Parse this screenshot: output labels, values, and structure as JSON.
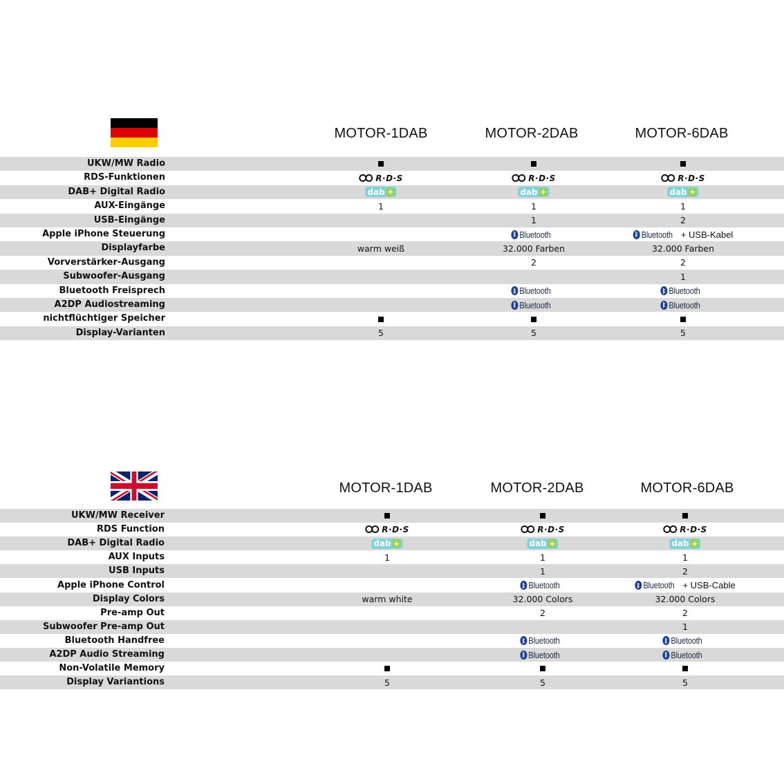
{
  "de": {
    "flag": "germany-flag",
    "models": [
      "MOTOR-1DAB",
      "MOTOR-2DAB",
      "MOTOR-6DAB"
    ],
    "rows": [
      {
        "label": "UKW/MW Radio",
        "cells": [
          {
            "t": "square"
          },
          {
            "t": "square"
          },
          {
            "t": "square"
          }
        ]
      },
      {
        "label": "RDS-Funktionen",
        "cells": [
          {
            "t": "rds",
            "text": "R·D·S"
          },
          {
            "t": "rds",
            "text": "R·D·S"
          },
          {
            "t": "rds",
            "text": "R·D·S"
          }
        ]
      },
      {
        "label": "DAB+ Digital Radio",
        "cells": [
          {
            "t": "dab",
            "text": "dab"
          },
          {
            "t": "dab",
            "text": "dab"
          },
          {
            "t": "dab",
            "text": "dab"
          }
        ]
      },
      {
        "label": "AUX-Eingänge",
        "cells": [
          {
            "t": "text",
            "text": "1"
          },
          {
            "t": "text",
            "text": "1"
          },
          {
            "t": "text",
            "text": "1"
          }
        ]
      },
      {
        "label": "USB-Eingänge",
        "cells": [
          {
            "t": "empty"
          },
          {
            "t": "text",
            "text": "1"
          },
          {
            "t": "text",
            "text": "2"
          }
        ]
      },
      {
        "label": "Apple iPhone Steuerung",
        "cells": [
          {
            "t": "empty"
          },
          {
            "t": "bt",
            "text": "Bluetooth"
          },
          {
            "t": "bt",
            "text": "Bluetooth",
            "extra": "+ USB-Kabel"
          }
        ]
      },
      {
        "label": "Displayfarbe",
        "cells": [
          {
            "t": "text",
            "text": "warm weiß"
          },
          {
            "t": "text",
            "text": "32.000 Farben"
          },
          {
            "t": "text",
            "text": "32.000 Farben"
          }
        ]
      },
      {
        "label": "Vorverstärker-Ausgang",
        "cells": [
          {
            "t": "empty"
          },
          {
            "t": "text",
            "text": "2"
          },
          {
            "t": "text",
            "text": "2"
          }
        ]
      },
      {
        "label": "Subwoofer-Ausgang",
        "cells": [
          {
            "t": "empty"
          },
          {
            "t": "empty"
          },
          {
            "t": "text",
            "text": "1"
          }
        ]
      },
      {
        "label": "Bluetooth Freisprech",
        "cells": [
          {
            "t": "empty"
          },
          {
            "t": "bt",
            "text": "Bluetooth"
          },
          {
            "t": "bt",
            "text": "Bluetooth"
          }
        ]
      },
      {
        "label": "A2DP Audiostreaming",
        "cells": [
          {
            "t": "empty"
          },
          {
            "t": "bt",
            "text": "Bluetooth"
          },
          {
            "t": "bt",
            "text": "Bluetooth"
          }
        ]
      },
      {
        "label": "nichtflüchtiger Speicher",
        "cells": [
          {
            "t": "square"
          },
          {
            "t": "square"
          },
          {
            "t": "square"
          }
        ]
      },
      {
        "label": "Display-Varianten",
        "cells": [
          {
            "t": "text",
            "text": "5"
          },
          {
            "t": "text",
            "text": "5"
          },
          {
            "t": "text",
            "text": "5"
          }
        ]
      }
    ]
  },
  "en": {
    "flag": "uk-flag",
    "models": [
      "MOTOR-1DAB",
      "MOTOR-2DAB",
      "MOTOR-6DAB"
    ],
    "rows": [
      {
        "label": "UKW/MW Receiver",
        "cells": [
          {
            "t": "square"
          },
          {
            "t": "square"
          },
          {
            "t": "square"
          }
        ]
      },
      {
        "label": "RDS Function",
        "cells": [
          {
            "t": "rds",
            "text": "R·D·S"
          },
          {
            "t": "rds",
            "text": "R·D·S"
          },
          {
            "t": "rds",
            "text": "R·D·S"
          }
        ]
      },
      {
        "label": "DAB+ Digital Radio",
        "cells": [
          {
            "t": "dab",
            "text": "dab"
          },
          {
            "t": "dab",
            "text": "dab"
          },
          {
            "t": "dab",
            "text": "dab"
          }
        ]
      },
      {
        "label": "AUX Inputs",
        "cells": [
          {
            "t": "text",
            "text": "1"
          },
          {
            "t": "text",
            "text": "1"
          },
          {
            "t": "text",
            "text": "1"
          }
        ]
      },
      {
        "label": "USB Inputs",
        "cells": [
          {
            "t": "empty"
          },
          {
            "t": "text",
            "text": "1"
          },
          {
            "t": "text",
            "text": "2"
          }
        ]
      },
      {
        "label": "Apple iPhone Control",
        "cells": [
          {
            "t": "empty"
          },
          {
            "t": "bt",
            "text": "Bluetooth"
          },
          {
            "t": "bt",
            "text": "Bluetooth",
            "extra": "+ USB-Cable"
          }
        ]
      },
      {
        "label": "Display Colors",
        "cells": [
          {
            "t": "text",
            "text": "warm white"
          },
          {
            "t": "text",
            "text": "32.000 Colors"
          },
          {
            "t": "text",
            "text": "32.000 Colors"
          }
        ]
      },
      {
        "label": "Pre-amp Out",
        "cells": [
          {
            "t": "empty"
          },
          {
            "t": "text",
            "text": "2"
          },
          {
            "t": "text",
            "text": "2"
          }
        ]
      },
      {
        "label": "Subwoofer Pre-amp Out",
        "cells": [
          {
            "t": "empty"
          },
          {
            "t": "empty"
          },
          {
            "t": "text",
            "text": "1"
          }
        ]
      },
      {
        "label": "Bluetooth Handfree",
        "cells": [
          {
            "t": "empty"
          },
          {
            "t": "bt",
            "text": "Bluetooth"
          },
          {
            "t": "bt",
            "text": "Bluetooth"
          }
        ]
      },
      {
        "label": "A2DP Audio Streaming",
        "cells": [
          {
            "t": "empty"
          },
          {
            "t": "bt",
            "text": "Bluetooth"
          },
          {
            "t": "bt",
            "text": "Bluetooth"
          }
        ]
      },
      {
        "label": "Non-Volatile Memory",
        "cells": [
          {
            "t": "square"
          },
          {
            "t": "square"
          },
          {
            "t": "square"
          }
        ]
      },
      {
        "label": "Display Variantions",
        "cells": [
          {
            "t": "text",
            "text": "5"
          },
          {
            "t": "text",
            "text": "5"
          },
          {
            "t": "text",
            "text": "5"
          }
        ]
      }
    ]
  }
}
